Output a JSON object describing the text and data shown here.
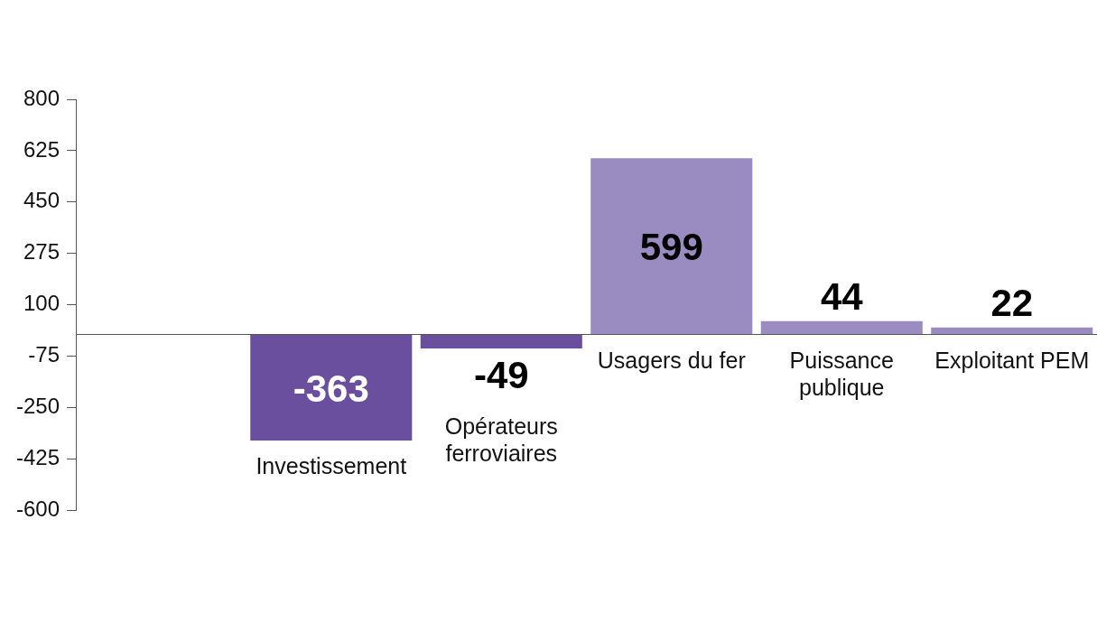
{
  "chart_data": {
    "type": "bar",
    "categories": [
      null,
      "Investissement",
      "Opérateurs ferroviaires",
      "Usagers du fer",
      "Puissance publique",
      "Exploitant PEM"
    ],
    "values": [
      null,
      -363,
      -49,
      599,
      44,
      22
    ],
    "colors": [
      null,
      "#6a4f9e",
      "#6a4f9e",
      "#9a8bc1",
      "#9a8bc1",
      "#9a8bc1"
    ],
    "ylim": [
      -600,
      800
    ],
    "yticks": [
      -600,
      -425,
      -250,
      -75,
      100,
      275,
      450,
      625,
      800
    ],
    "grid": false,
    "legend": false,
    "data_labels": true
  }
}
